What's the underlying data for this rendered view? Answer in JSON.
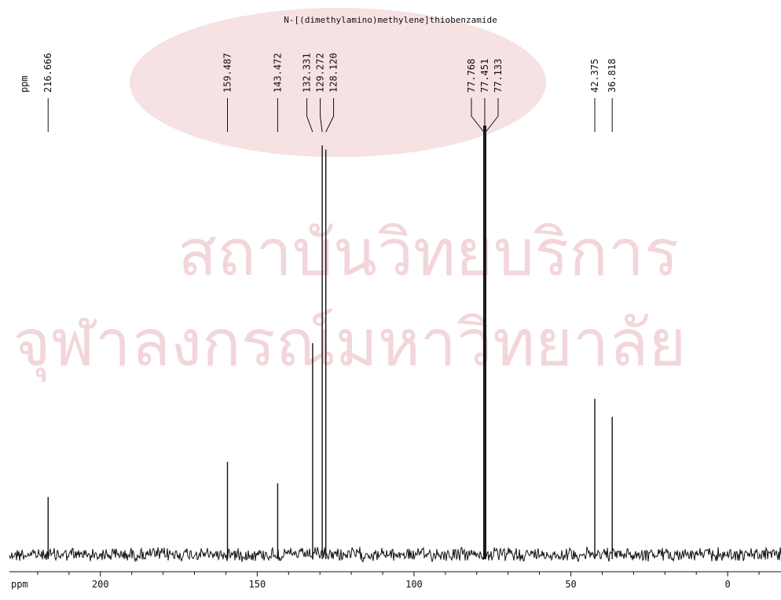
{
  "chart_data": {
    "type": "line",
    "title": "N-[(dimethylamino)methylene]thiobenzamide",
    "unit_label_top": "ppm",
    "xlabel": "ppm",
    "xlim": [
      229,
      -17
    ],
    "x_ticks": [
      200,
      150,
      100,
      50,
      0
    ],
    "x_tick_labels": [
      "200",
      "150",
      "100",
      "50",
      "0"
    ],
    "ylim": [
      0,
      1
    ],
    "grid": false,
    "peaks": [
      {
        "ppm": 216.666,
        "label": "216.666",
        "height": 0.134
      },
      {
        "ppm": 159.487,
        "label": "159.487",
        "height": 0.216
      },
      {
        "ppm": 143.472,
        "label": "143.472",
        "height": 0.166
      },
      {
        "ppm": 132.331,
        "label": "132.331",
        "height": 0.493
      },
      {
        "ppm": 129.272,
        "label": "129.272",
        "height": 0.954
      },
      {
        "ppm": 128.12,
        "label": "128.120",
        "height": 0.944
      },
      {
        "ppm": 77.768,
        "label": "77.768",
        "height": 1.0
      },
      {
        "ppm": 77.451,
        "label": "77.451",
        "height": 1.0
      },
      {
        "ppm": 77.133,
        "label": "77.133",
        "height": 1.0
      },
      {
        "ppm": 42.375,
        "label": "42.375",
        "height": 0.363
      },
      {
        "ppm": 36.818,
        "label": "36.818",
        "height": 0.321
      }
    ]
  },
  "watermark": {
    "line1": "สถาบันวิทยบริการ",
    "line2": "จุฬาลงกรณ์มหาวิทยาลัย"
  },
  "colors": {
    "trace": "#111111",
    "watermark": "#f2d6d9"
  }
}
